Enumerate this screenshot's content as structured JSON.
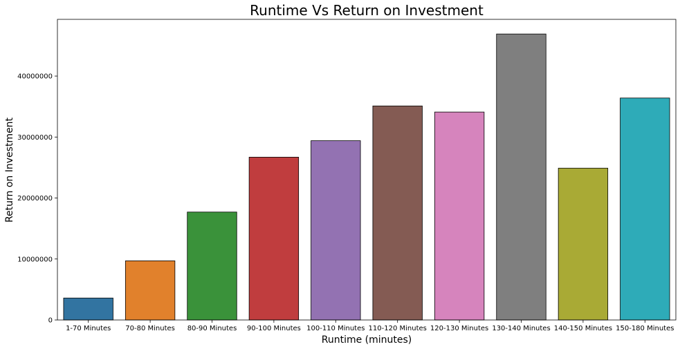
{
  "chart_data": {
    "type": "bar",
    "title": "Runtime Vs Return on Investment",
    "xlabel": "Runtime (minutes)",
    "ylabel": "Return on Investment",
    "categories": [
      "1-70 Minutes",
      "70-80 Minutes",
      "80-90 Minutes",
      "90-100 Minutes",
      "100-110 Minutes",
      "110-120 Minutes",
      "120-130 Minutes",
      "130-140 Minutes",
      "140-150 Minutes",
      "150-180 Minutes"
    ],
    "values": [
      3600000,
      9700000,
      17700000,
      26700000,
      29400000,
      35100000,
      34100000,
      46900000,
      24900000,
      36400000
    ],
    "colors": [
      "#3274a1",
      "#e1812c",
      "#3a923a",
      "#c03d3e",
      "#9372b2",
      "#845b53",
      "#d684bd",
      "#7f7f7f",
      "#a9aa35",
      "#2eabb8"
    ],
    "yticks": [
      0,
      10000000,
      20000000,
      30000000,
      40000000
    ],
    "ytick_labels": [
      "0",
      "10000000",
      "20000000",
      "30000000",
      "40000000"
    ],
    "ylim": [
      0,
      49300000
    ],
    "grid": false,
    "legend": "none"
  }
}
